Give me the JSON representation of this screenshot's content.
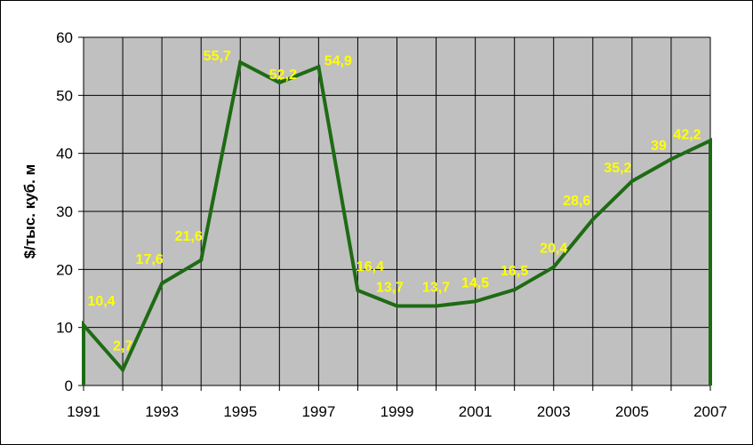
{
  "chart_data": {
    "type": "line",
    "title": "",
    "xlabel": "",
    "ylabel": "$/тыс. куб. м",
    "x": [
      1991,
      1992,
      1993,
      1994,
      1995,
      1996,
      1997,
      1998,
      1999,
      2000,
      2001,
      2002,
      2003,
      2004,
      2005,
      2006,
      2007
    ],
    "series": [
      {
        "values": [
          10.4,
          2.7,
          17.6,
          21.6,
          55.7,
          52.2,
          54.9,
          16.4,
          13.7,
          13.7,
          14.5,
          16.5,
          20.4,
          28.6,
          35.2,
          39,
          42.2
        ],
        "labels": [
          "10,4",
          "2,7",
          "17,6",
          "21,6",
          "55,7",
          "52,2",
          "54,9",
          "16,4",
          "13,7",
          "13,7",
          "14,5",
          "16,5",
          "20,4",
          "28,6",
          "35,2",
          "39",
          "42,2"
        ]
      }
    ],
    "x_tick_labels": [
      "1991",
      "1993",
      "1995",
      "1997",
      "1999",
      "2001",
      "2003",
      "2005",
      "2007"
    ],
    "y_tick_labels": [
      "0",
      "10",
      "20",
      "30",
      "40",
      "50",
      "60"
    ],
    "ylim": [
      0,
      60
    ],
    "xlim": [
      1991,
      2007
    ],
    "grid": true,
    "legend": "none",
    "colors": {
      "plot_background": "#c0c0c0",
      "line": "#1e6b14",
      "data_labels": "#ffff00",
      "grid": "#000000"
    }
  }
}
